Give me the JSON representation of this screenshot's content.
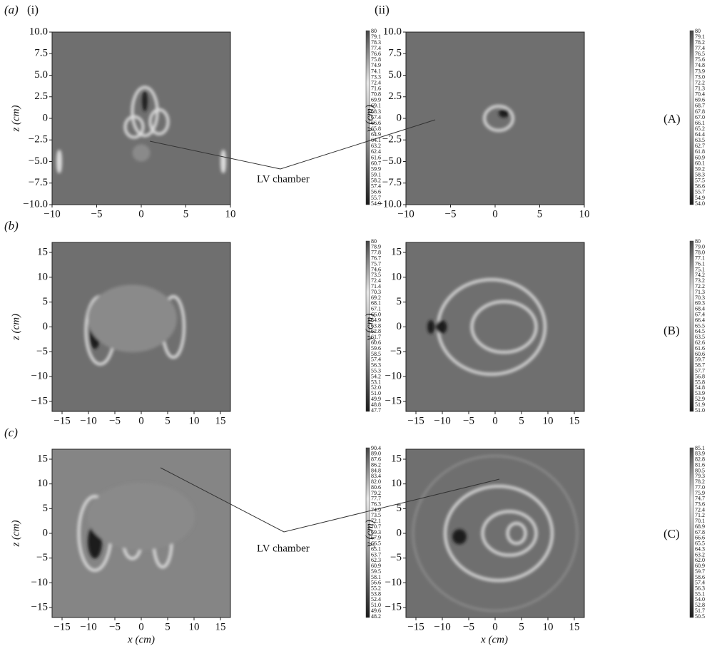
{
  "panel_labels": [
    "(a)",
    "(b)",
    "(c)"
  ],
  "column_labels": [
    "(i)",
    "(ii)"
  ],
  "row_tags": [
    "(A)",
    "(B)",
    "(C)"
  ],
  "annotations": [
    "LV chamber",
    "LV chamber"
  ],
  "x_label": "x (cm)",
  "y_labels": [
    "z (cm)",
    "y (cm)"
  ],
  "panels": [
    {
      "xticks": [
        "−10",
        "−5",
        "0",
        "5",
        "10"
      ],
      "yticks": [
        "10.0",
        "7.5",
        "5.0",
        "2.5",
        "0",
        "−2.5",
        "−5.0",
        "−7.5",
        "−10.0"
      ],
      "colorbar": [
        "80",
        "79.1",
        "78.3",
        "77.4",
        "76.6",
        "75.8",
        "74.9",
        "74.1",
        "73.3",
        "72.4",
        "71.6",
        "70.8",
        "69.9",
        "69.1",
        "68.3",
        "67.4",
        "66.6",
        "65.8",
        "64.9",
        "64.1",
        "63.2",
        "62.4",
        "61.6",
        "60.7",
        "59.9",
        "59.1",
        "58.2",
        "57.4",
        "56.6",
        "55.7",
        "54.9"
      ]
    },
    {
      "xticks": [
        "−10",
        "−5",
        "0",
        "5",
        "10"
      ],
      "yticks": [
        "10.0",
        "7.5",
        "5.0",
        "2.5",
        "0",
        "−2.5",
        "−5.0",
        "−7.5",
        "−10.0"
      ],
      "colorbar": [
        "80",
        "79.1",
        "78.2",
        "77.4",
        "76.5",
        "75.6",
        "74.8",
        "73.9",
        "73.0",
        "72.2",
        "71.3",
        "70.4",
        "69.6",
        "68.7",
        "67.8",
        "67.0",
        "66.1",
        "65.2",
        "64.4",
        "63.5",
        "62.7",
        "61.8",
        "60.9",
        "60.1",
        "59.2",
        "58.3",
        "57.5",
        "56.6",
        "55.7",
        "54.9",
        "54.0"
      ]
    },
    {
      "xticks": [
        "−15",
        "−10",
        "−5",
        "0",
        "5",
        "10",
        "15"
      ],
      "yticks": [
        "15",
        "10",
        "5",
        "0",
        "−5",
        "−10",
        "−15"
      ],
      "colorbar": [
        "80",
        "78.9",
        "77.8",
        "76.7",
        "75.7",
        "74.6",
        "73.5",
        "72.4",
        "71.4",
        "70.3",
        "69.2",
        "68.1",
        "67.1",
        "66.0",
        "64.9",
        "63.8",
        "62.8",
        "61.7",
        "60.6",
        "59.6",
        "58.5",
        "57.4",
        "56.3",
        "55.3",
        "54.2",
        "53.1",
        "52.0",
        "51.0",
        "49.9",
        "48.8",
        "47.7"
      ]
    },
    {
      "xticks": [
        "−15",
        "−10",
        "−5",
        "0",
        "5",
        "10",
        "15"
      ],
      "yticks": [
        "15",
        "10",
        "5",
        "0",
        "−5",
        "−10",
        "−15"
      ],
      "colorbar": [
        "80",
        "79.0",
        "78.0",
        "77.1",
        "76.1",
        "75.1",
        "74.2",
        "73.2",
        "72.2",
        "71.3",
        "70.3",
        "69.3",
        "68.4",
        "67.4",
        "66.4",
        "65.5",
        "64.5",
        "63.5",
        "62.6",
        "61.6",
        "60.6",
        "59.7",
        "58.7",
        "57.7",
        "56.8",
        "55.8",
        "54.8",
        "53.9",
        "52.9",
        "51.9",
        "51.0"
      ]
    },
    {
      "xticks": [
        "−15",
        "−10",
        "−5",
        "0",
        "5",
        "10",
        "15"
      ],
      "yticks": [
        "15",
        "10",
        "5",
        "0",
        "−5",
        "−10",
        "−15"
      ],
      "colorbar": [
        "90.4",
        "89.0",
        "87.6",
        "86.2",
        "84.8",
        "83.4",
        "82.0",
        "80.6",
        "79.2",
        "77.7",
        "76.3",
        "74.9",
        "73.5",
        "72.1",
        "70.7",
        "69.3",
        "67.9",
        "66.5",
        "65.1",
        "63.7",
        "62.3",
        "60.9",
        "59.5",
        "58.1",
        "56.6",
        "55.2",
        "53.8",
        "52.4",
        "51.0",
        "49.6",
        "48.2"
      ]
    },
    {
      "xticks": [
        "−15",
        "−10",
        "−5",
        "0",
        "5",
        "10",
        "15"
      ],
      "yticks": [
        "15",
        "10",
        "5",
        "0",
        "−5",
        "−10",
        "−15"
      ],
      "colorbar": [
        "85.1",
        "83.9",
        "82.8",
        "81.6",
        "80.5",
        "79.3",
        "78.2",
        "77.0",
        "75.9",
        "74.7",
        "73.6",
        "72.4",
        "71.2",
        "70.1",
        "68.9",
        "67.8",
        "66.6",
        "65.5",
        "64.3",
        "63.2",
        "62.0",
        "60.9",
        "59.7",
        "58.6",
        "57.4",
        "56.3",
        "55.1",
        "54.0",
        "52.8",
        "51.7",
        "50.5"
      ]
    }
  ]
}
